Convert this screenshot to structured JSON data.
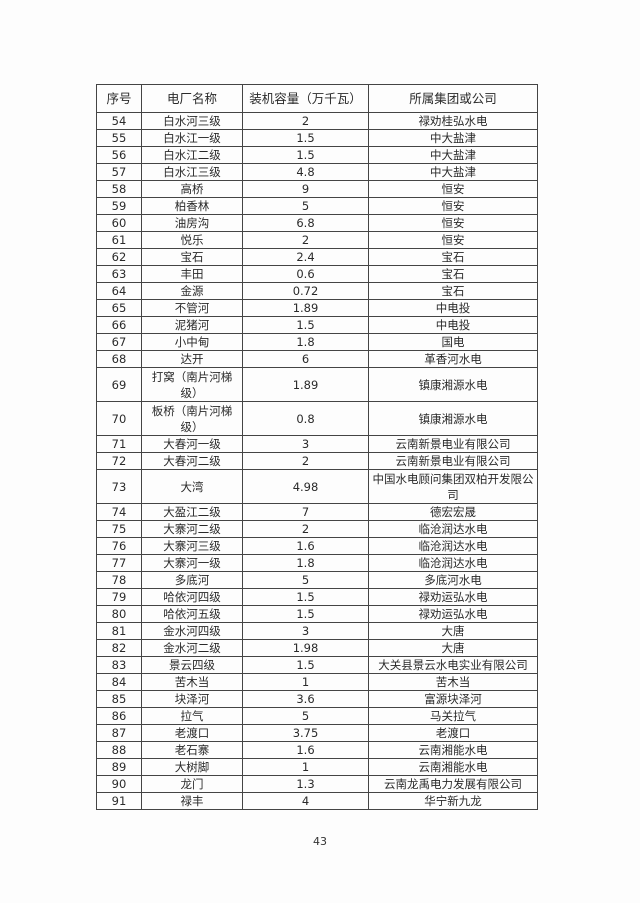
{
  "table": {
    "headers": [
      "序号",
      "电厂名称",
      "装机容量（万千瓦）",
      "所属集团或公司"
    ],
    "rows": [
      [
        "54",
        "白水河三级",
        "2",
        "禄劝桂弘水电"
      ],
      [
        "55",
        "白水江一级",
        "1.5",
        "中大盐津"
      ],
      [
        "56",
        "白水江二级",
        "1.5",
        "中大盐津"
      ],
      [
        "57",
        "白水江三级",
        "4.8",
        "中大盐津"
      ],
      [
        "58",
        "高桥",
        "9",
        "恒安"
      ],
      [
        "59",
        "柏香林",
        "5",
        "恒安"
      ],
      [
        "60",
        "油房沟",
        "6.8",
        "恒安"
      ],
      [
        "61",
        "悦乐",
        "2",
        "恒安"
      ],
      [
        "62",
        "宝石",
        "2.4",
        "宝石"
      ],
      [
        "63",
        "丰田",
        "0.6",
        "宝石"
      ],
      [
        "64",
        "金源",
        "0.72",
        "宝石"
      ],
      [
        "65",
        "不管河",
        "1.89",
        "中电投"
      ],
      [
        "66",
        "泥猪河",
        "1.5",
        "中电投"
      ],
      [
        "67",
        "小中甸",
        "1.8",
        "国电"
      ],
      [
        "68",
        "达开",
        "6",
        "革香河水电"
      ],
      [
        "69",
        "打窝（南片河梯级）",
        "1.89",
        "镇康湘源水电"
      ],
      [
        "70",
        "板桥（南片河梯级）",
        "0.8",
        "镇康湘源水电"
      ],
      [
        "71",
        "大春河一级",
        "3",
        "云南新景电业有限公司"
      ],
      [
        "72",
        "大春河二级",
        "2",
        "云南新景电业有限公司"
      ],
      [
        "73",
        "大湾",
        "4.98",
        "中国水电顾问集团双柏开发限公司"
      ],
      [
        "74",
        "大盈江二级",
        "7",
        "德宏宏晟"
      ],
      [
        "75",
        "大寨河二级",
        "2",
        "临沧润达水电"
      ],
      [
        "76",
        "大寨河三级",
        "1.6",
        "临沧润达水电"
      ],
      [
        "77",
        "大寨河一级",
        "1.8",
        "临沧润达水电"
      ],
      [
        "78",
        "多底河",
        "5",
        "多底河水电"
      ],
      [
        "79",
        "哈依河四级",
        "1.5",
        "禄劝运弘水电"
      ],
      [
        "80",
        "哈依河五级",
        "1.5",
        "禄劝运弘水电"
      ],
      [
        "81",
        "金水河四级",
        "3",
        "大唐"
      ],
      [
        "82",
        "金水河二级",
        "1.98",
        "大唐"
      ],
      [
        "83",
        "景云四级",
        "1.5",
        "大关县景云水电实业有限公司"
      ],
      [
        "84",
        "苦木当",
        "1",
        "苦木当"
      ],
      [
        "85",
        "块泽河",
        "3.6",
        "富源块泽河"
      ],
      [
        "86",
        "拉气",
        "5",
        "马关拉气"
      ],
      [
        "87",
        "老渡口",
        "3.75",
        "老渡口"
      ],
      [
        "88",
        "老石寨",
        "1.6",
        "云南湘能水电"
      ],
      [
        "89",
        "大树脚",
        "1",
        "云南湘能水电"
      ],
      [
        "90",
        "龙门",
        "1.3",
        "云南龙禹电力发展有限公司"
      ],
      [
        "91",
        "禄丰",
        "4",
        "华宁新九龙"
      ]
    ]
  },
  "page_number": "43"
}
